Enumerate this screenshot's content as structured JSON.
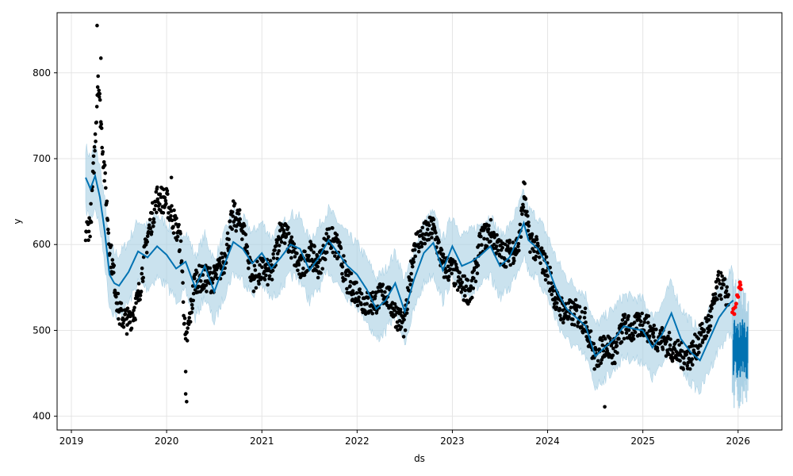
{
  "chart_data": {
    "type": "scatter",
    "title": "",
    "xlabel": "ds",
    "ylabel": "y",
    "xlim": [
      2018.85,
      2026.46
    ],
    "ylim": [
      384,
      870
    ],
    "grid": true,
    "x_ticks": [
      2019,
      2020,
      2021,
      2022,
      2023,
      2024,
      2025,
      2026
    ],
    "x_tick_labels": [
      "2019",
      "2020",
      "2021",
      "2022",
      "2023",
      "2024",
      "2025",
      "2026"
    ],
    "y_ticks": [
      400,
      500,
      600,
      700,
      800
    ],
    "y_tick_labels": [
      "400",
      "500",
      "600",
      "700",
      "800"
    ],
    "colors": {
      "observed": "#000000",
      "holdout": "#ff0000",
      "forecast": "#0072b2",
      "interval": "#a6cee3",
      "grid": "#e5e5e5"
    },
    "forecast": {
      "x": [
        2019.15,
        2019.2,
        2019.25,
        2019.3,
        2019.35,
        2019.4,
        2019.45,
        2019.5,
        2019.6,
        2019.7,
        2019.8,
        2019.9,
        2020.0,
        2020.1,
        2020.2,
        2020.3,
        2020.4,
        2020.5,
        2020.6,
        2020.7,
        2020.8,
        2020.9,
        2021.0,
        2021.1,
        2021.2,
        2021.3,
        2021.4,
        2021.5,
        2021.6,
        2021.7,
        2021.8,
        2021.9,
        2022.0,
        2022.1,
        2022.2,
        2022.3,
        2022.4,
        2022.5,
        2022.6,
        2022.7,
        2022.8,
        2022.9,
        2023.0,
        2023.1,
        2023.2,
        2023.3,
        2023.4,
        2023.5,
        2023.6,
        2023.7,
        2023.75,
        2023.8,
        2023.9,
        2024.0,
        2024.1,
        2024.2,
        2024.3,
        2024.4,
        2024.5,
        2024.6,
        2024.7,
        2024.8,
        2024.9,
        2025.0,
        2025.1,
        2025.2,
        2025.3,
        2025.4,
        2025.5,
        2025.6,
        2025.7,
        2025.8,
        2025.9,
        2025.95
      ],
      "y": [
        678,
        665,
        680,
        655,
        615,
        565,
        555,
        552,
        568,
        592,
        585,
        598,
        588,
        572,
        580,
        550,
        575,
        545,
        575,
        603,
        595,
        578,
        590,
        572,
        585,
        600,
        595,
        570,
        585,
        605,
        590,
        575,
        565,
        548,
        525,
        535,
        555,
        522,
        560,
        590,
        602,
        570,
        598,
        575,
        580,
        588,
        598,
        575,
        585,
        610,
        625,
        605,
        595,
        575,
        545,
        525,
        515,
        505,
        470,
        480,
        490,
        505,
        502,
        500,
        480,
        495,
        520,
        490,
        475,
        465,
        490,
        515,
        530,
        535
      ],
      "interval_width": 72,
      "band_outlier_center": 2025.98,
      "band_outlier_low": 407,
      "band_outlier_high": 560
    },
    "observed_anchors": {
      "x": [
        2019.15,
        2019.2,
        2019.25,
        2019.28,
        2019.3,
        2019.35,
        2019.4,
        2019.45,
        2019.5,
        2019.6,
        2019.7,
        2019.8,
        2019.9,
        2020.0,
        2020.1,
        2020.15,
        2020.2,
        2020.3,
        2020.4,
        2020.5,
        2020.6,
        2020.7,
        2020.8,
        2020.9,
        2021.0,
        2021.1,
        2021.2,
        2021.3,
        2021.4,
        2021.5,
        2021.6,
        2021.7,
        2021.8,
        2021.9,
        2022.0,
        2022.1,
        2022.2,
        2022.3,
        2022.4,
        2022.5,
        2022.6,
        2022.7,
        2022.8,
        2022.9,
        2023.0,
        2023.1,
        2023.2,
        2023.3,
        2023.4,
        2023.5,
        2023.6,
        2023.7,
        2023.75,
        2023.8,
        2023.9,
        2024.0,
        2024.1,
        2024.2,
        2024.3,
        2024.4,
        2024.5,
        2024.6,
        2024.7,
        2024.8,
        2024.9,
        2025.0,
        2025.1,
        2025.2,
        2025.3,
        2025.4,
        2025.5,
        2025.6,
        2025.7,
        2025.8,
        2025.9
      ],
      "y": [
        615,
        625,
        720,
        800,
        760,
        680,
        600,
        560,
        520,
        510,
        535,
        610,
        655,
        650,
        620,
        600,
        480,
        560,
        560,
        560,
        580,
        635,
        620,
        560,
        570,
        565,
        620,
        600,
        570,
        590,
        575,
        610,
        595,
        555,
        545,
        530,
        535,
        545,
        520,
        505,
        600,
        610,
        620,
        575,
        570,
        550,
        545,
        605,
        615,
        590,
        590,
        600,
        660,
        610,
        590,
        570,
        530,
        520,
        520,
        510,
        465,
        485,
        475,
        505,
        500,
        510,
        495,
        490,
        480,
        470,
        470,
        490,
        510,
        555,
        540
      ]
    },
    "observed_outliers": [
      {
        "x": 2019.27,
        "y": 855
      },
      {
        "x": 2019.31,
        "y": 817
      },
      {
        "x": 2020.2,
        "y": 426
      },
      {
        "x": 2020.21,
        "y": 417
      },
      {
        "x": 2020.2,
        "y": 452
      },
      {
        "x": 2024.6,
        "y": 411
      },
      {
        "x": 2020.05,
        "y": 678
      },
      {
        "x": 2023.76,
        "y": 671
      }
    ],
    "holdout_points": {
      "x": [
        2025.94,
        2025.95,
        2025.96,
        2025.97,
        2025.98,
        2025.99,
        2026.0,
        2026.01,
        2026.02,
        2026.025,
        2026.03
      ],
      "y": [
        521,
        525,
        519,
        527,
        531,
        541,
        539,
        550,
        556,
        553,
        548
      ]
    },
    "forecast_tail": {
      "x_start": 2025.95,
      "x_end": 2026.1,
      "y_low": 443,
      "y_high": 513
    }
  }
}
